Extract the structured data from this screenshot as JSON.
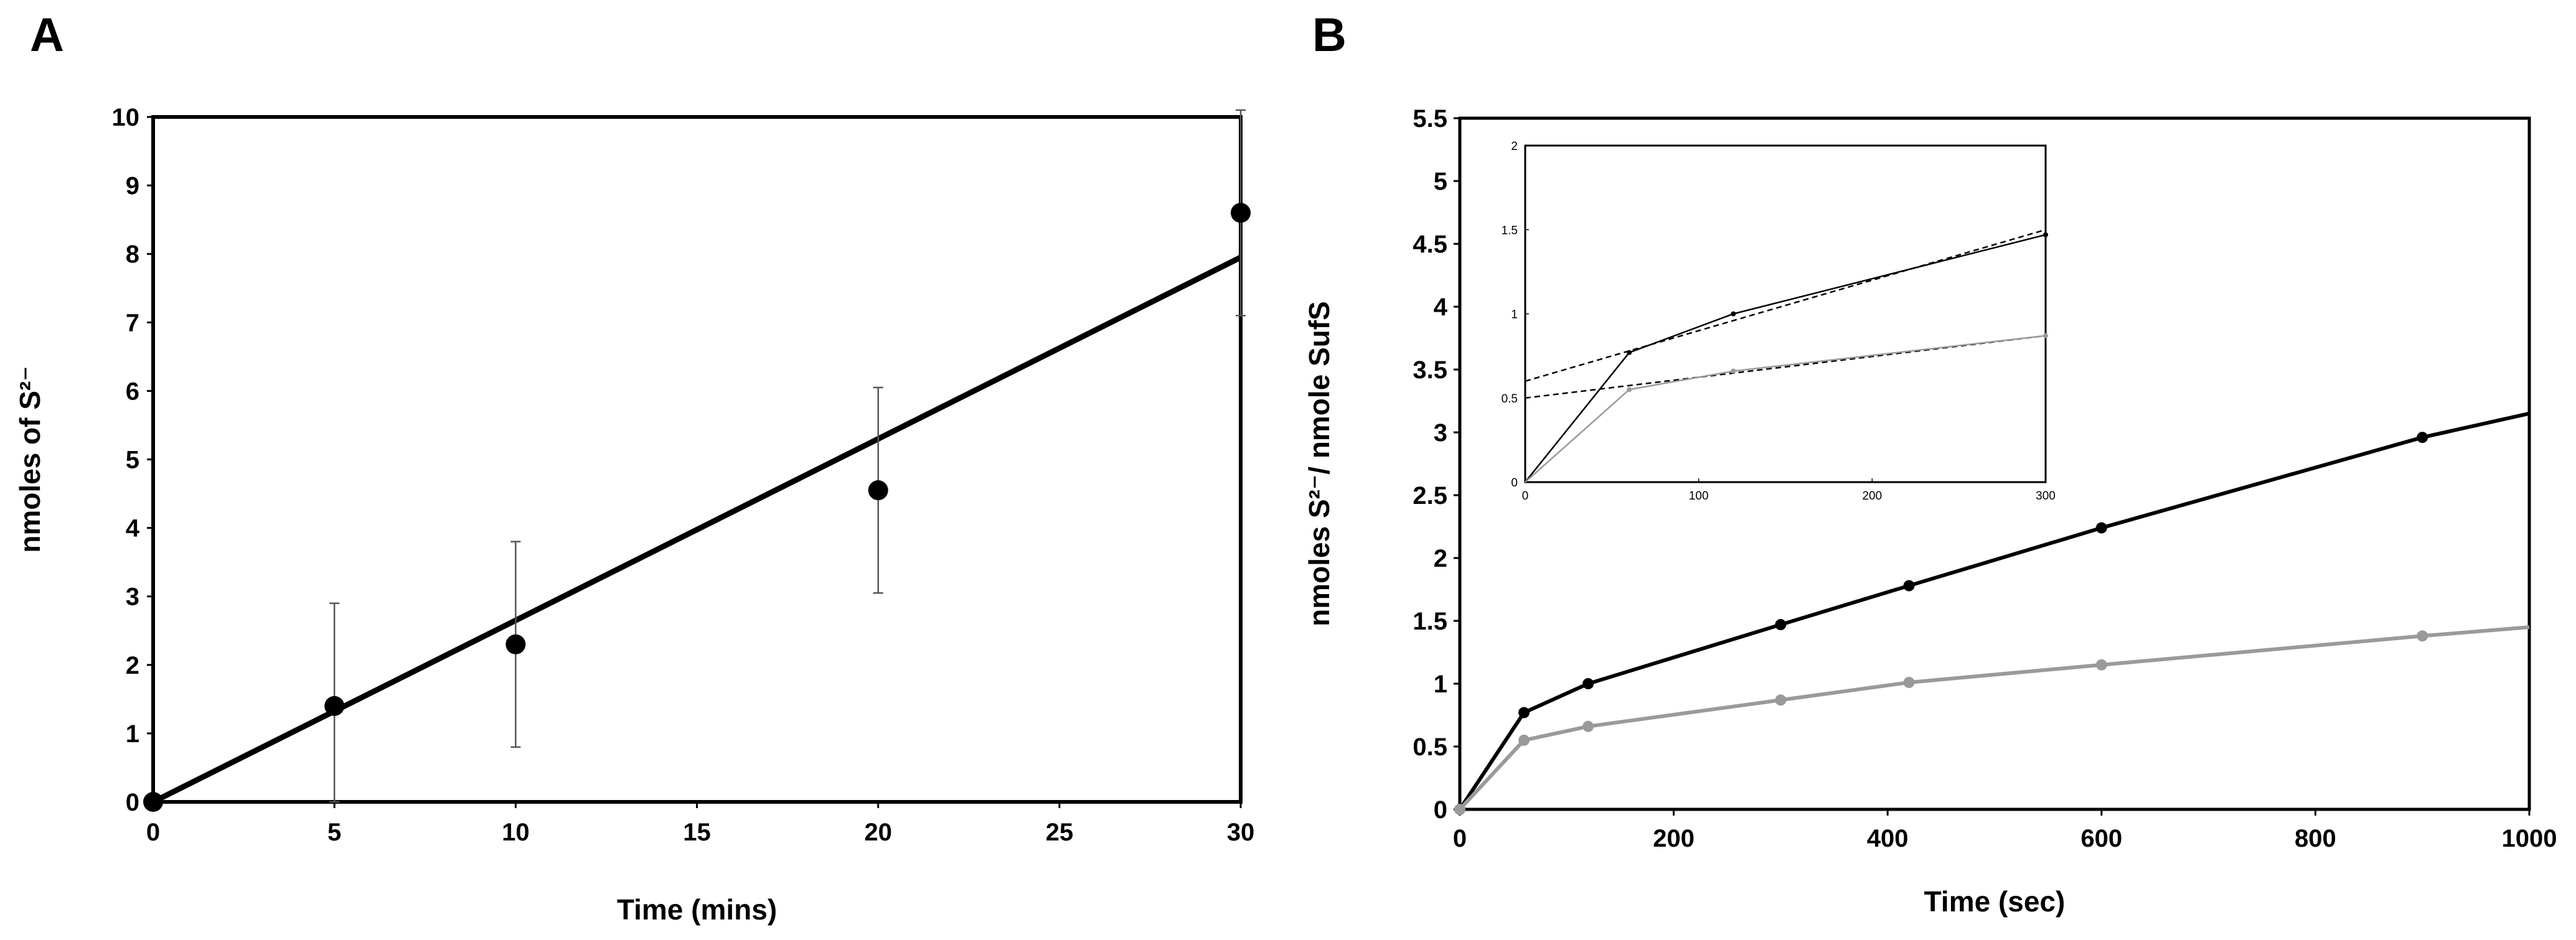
{
  "chart_data": [
    {
      "panel": "A",
      "type": "scatter",
      "xlabel": "Time (mins)",
      "ylabel": "nmoles of S²⁻",
      "xlim": [
        0,
        30
      ],
      "ylim": [
        0,
        10
      ],
      "x_ticks": [
        "0",
        "5",
        "10",
        "15",
        "20",
        "25",
        "30"
      ],
      "y_ticks": [
        "0",
        "1",
        "2",
        "3",
        "4",
        "5",
        "6",
        "7",
        "8",
        "9",
        "10"
      ],
      "points": [
        {
          "x": 0,
          "y": 0,
          "err": 0
        },
        {
          "x": 5,
          "y": 1.4,
          "err": 1.5
        },
        {
          "x": 10,
          "y": 2.3,
          "err": 1.5
        },
        {
          "x": 20,
          "y": 4.55,
          "err": 1.5
        },
        {
          "x": 30,
          "y": 8.6,
          "err": 1.5
        }
      ],
      "fit_line": {
        "x": [
          0,
          30
        ],
        "y": [
          0,
          7.95
        ]
      }
    },
    {
      "panel": "B",
      "type": "line",
      "xlabel": "Time (sec)",
      "ylabel": "nmoles S²⁻/ nmole SufS",
      "xlim": [
        0,
        1000
      ],
      "ylim": [
        0,
        5.5
      ],
      "x_ticks": [
        "0",
        "200",
        "400",
        "600",
        "800",
        "1000"
      ],
      "y_ticks": [
        "0",
        "0.5",
        "1",
        "1.5",
        "2",
        "2.5",
        "3",
        "3.5",
        "4",
        "4.5",
        "5",
        "5.5"
      ],
      "series": [
        {
          "name": "black",
          "color": "#000000",
          "x": [
            0,
            60,
            120,
            300,
            420,
            600,
            900,
            1000
          ],
          "y": [
            0,
            0.77,
            1.0,
            1.47,
            1.78,
            2.24,
            2.96,
            3.15
          ],
          "markers": [
            0,
            60,
            120,
            300,
            420,
            600,
            900
          ]
        },
        {
          "name": "gray",
          "color": "#9a9a9a",
          "x": [
            0,
            60,
            120,
            300,
            420,
            600,
            900,
            1000
          ],
          "y": [
            0,
            0.55,
            0.66,
            0.87,
            1.01,
            1.15,
            1.38,
            1.45
          ],
          "markers": [
            0,
            60,
            120,
            300,
            420,
            600,
            900
          ]
        }
      ],
      "inset": {
        "xlim": [
          0,
          300
        ],
        "ylim": [
          0,
          2
        ],
        "x_ticks": [
          "0",
          "100",
          "200",
          "300"
        ],
        "y_ticks": [
          "0",
          "0.5",
          "1",
          "1.5",
          "2"
        ],
        "series": [
          {
            "name": "black",
            "color": "#000000",
            "x": [
              0,
              60,
              120,
              300
            ],
            "y": [
              0,
              0.77,
              1.0,
              1.47
            ]
          },
          {
            "name": "gray",
            "color": "#9a9a9a",
            "x": [
              0,
              60,
              120,
              300
            ],
            "y": [
              0,
              0.55,
              0.66,
              0.87
            ]
          }
        ],
        "dashed_fits": [
          {
            "x": [
              0,
              300
            ],
            "y": [
              0.6,
              1.5
            ]
          },
          {
            "x": [
              0,
              300
            ],
            "y": [
              0.5,
              0.87
            ]
          }
        ]
      }
    }
  ],
  "labels": {
    "panel_a": "A",
    "panel_b": "B"
  }
}
